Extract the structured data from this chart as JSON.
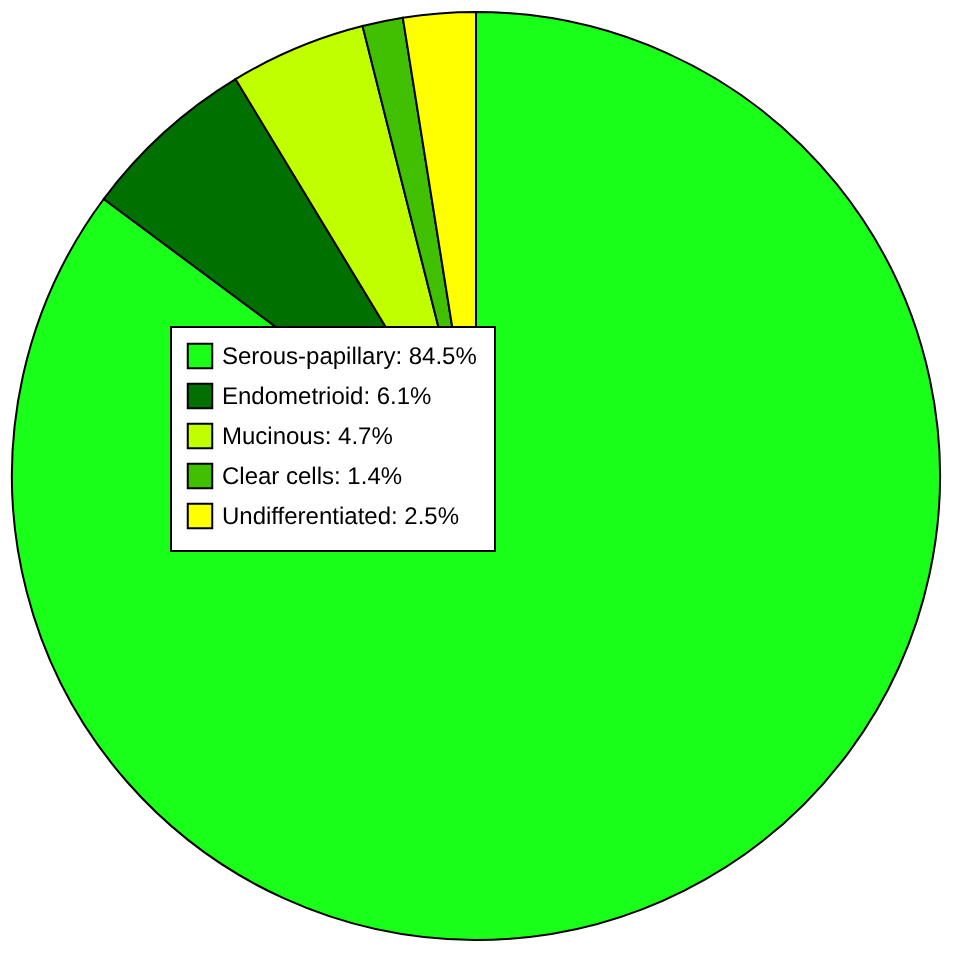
{
  "chart_data": {
    "type": "pie",
    "categories": [
      "Serous-papillary: 84.5%",
      "Endometrioid: 6.1%",
      "Mucinous: 4.7%",
      "Clear cells: 1.4%",
      "Undifferentiated: 2.5%"
    ],
    "values": [
      84.5,
      6.1,
      4.7,
      1.4,
      2.5
    ],
    "colors": [
      "#1aff1a",
      "#007000",
      "#c0ff00",
      "#40c000",
      "#ffff00"
    ],
    "legend": "top left"
  }
}
